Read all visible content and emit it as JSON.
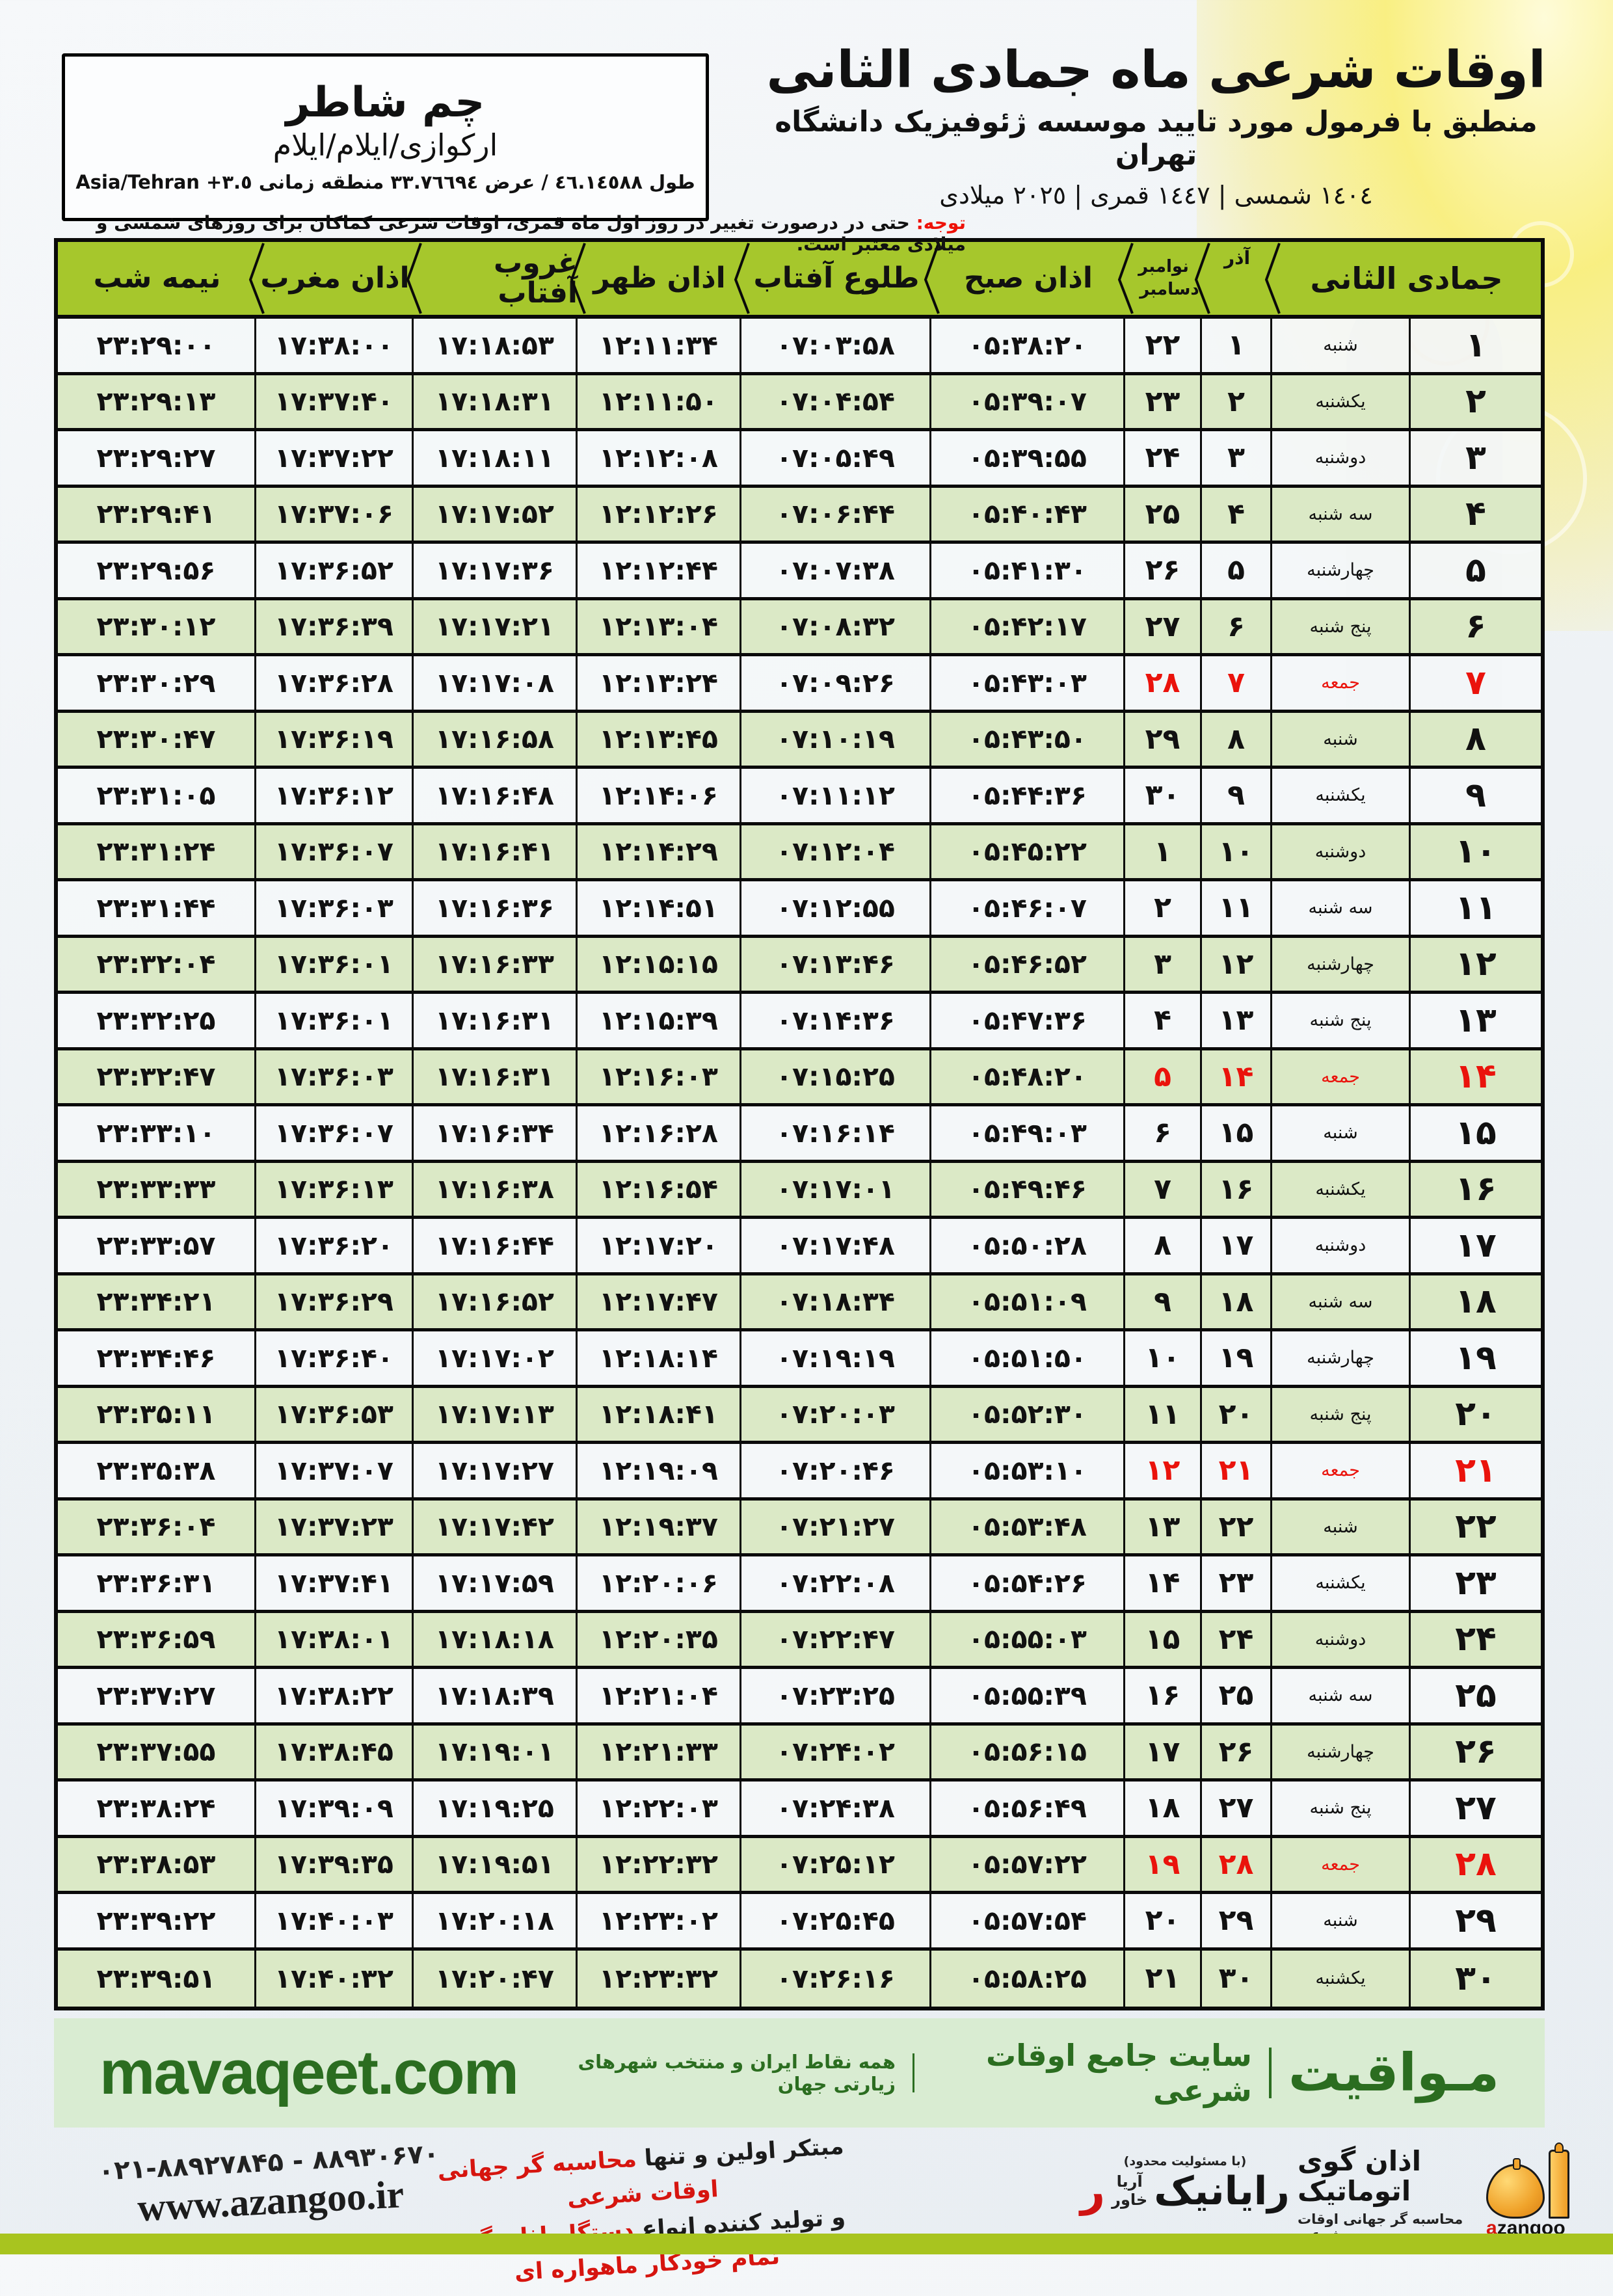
{
  "colors": {
    "header_green": "#a6c72c",
    "row_green": "#dbe9c6",
    "row_white": "#f4f7f8",
    "friday_red": "#ea130c",
    "band_bg": "#d9ecd2",
    "band_fg": "#2b6d20",
    "bottom_bar": "#a8c41f"
  },
  "location_box": {
    "city": "چم شاطر",
    "region": "ارکوازی/ایلام/ایلام",
    "coords_line": "طول ٤٦.١٤٥٨٨ / عرض ٣٣.٧٦٦٩٤ منطقه زمانی ٣.٥+ Asia/Tehran"
  },
  "header": {
    "title": "اوقات شرعی ماه جمادی الثانی",
    "subtitle": "منطبق با فرمول مورد تایید موسسه ژئوفیزیک دانشگاه تهران",
    "years_line": "١٤٠٤ شمسی | ١٤٤٧ قمری | ٢٠٢٥ میلادی"
  },
  "notice": {
    "label": "توجه:",
    "text": " حتی در درصورت تغییر در روز اول ماه قمری، اوقات شرعی کماکان برای روزهای شمسی و میلادی معتبر است."
  },
  "table": {
    "headers": {
      "nim": "نیمه شب",
      "maghreb": "اذان مغرب",
      "ghorub": "غروب آفتاب",
      "zohr": "اذان ظهر",
      "tolu": "طلوع آفتاب",
      "sobh": "اذان صبح",
      "nov": "نوامبر",
      "dec": "دسامبر",
      "azar": "آذر",
      "month": "جمادی الثانی"
    },
    "rows": [
      {
        "day": "۱",
        "weekday": "شنبه",
        "azar": "۱",
        "greg": "۲۲",
        "sobh": "۰۵:۳۸:۲۰",
        "tolu": "۰۷:۰۳:۵۸",
        "zohr": "۱۲:۱۱:۳۴",
        "ghorub": "۱۷:۱۸:۵۳",
        "maghreb": "۱۷:۳۸:۰۰",
        "nim": "۲۳:۲۹:۰۰",
        "friday": false
      },
      {
        "day": "۲",
        "weekday": "یکشنبه",
        "azar": "۲",
        "greg": "۲۳",
        "sobh": "۰۵:۳۹:۰۷",
        "tolu": "۰۷:۰۴:۵۴",
        "zohr": "۱۲:۱۱:۵۰",
        "ghorub": "۱۷:۱۸:۳۱",
        "maghreb": "۱۷:۳۷:۴۰",
        "nim": "۲۳:۲۹:۱۳",
        "friday": false
      },
      {
        "day": "۳",
        "weekday": "دوشنبه",
        "azar": "۳",
        "greg": "۲۴",
        "sobh": "۰۵:۳۹:۵۵",
        "tolu": "۰۷:۰۵:۴۹",
        "zohr": "۱۲:۱۲:۰۸",
        "ghorub": "۱۷:۱۸:۱۱",
        "maghreb": "۱۷:۳۷:۲۲",
        "nim": "۲۳:۲۹:۲۷",
        "friday": false
      },
      {
        "day": "۴",
        "weekday": "سه شنبه",
        "azar": "۴",
        "greg": "۲۵",
        "sobh": "۰۵:۴۰:۴۳",
        "tolu": "۰۷:۰۶:۴۴",
        "zohr": "۱۲:۱۲:۲۶",
        "ghorub": "۱۷:۱۷:۵۲",
        "maghreb": "۱۷:۳۷:۰۶",
        "nim": "۲۳:۲۹:۴۱",
        "friday": false
      },
      {
        "day": "۵",
        "weekday": "چهارشنبه",
        "azar": "۵",
        "greg": "۲۶",
        "sobh": "۰۵:۴۱:۳۰",
        "tolu": "۰۷:۰۷:۳۸",
        "zohr": "۱۲:۱۲:۴۴",
        "ghorub": "۱۷:۱۷:۳۶",
        "maghreb": "۱۷:۳۶:۵۲",
        "nim": "۲۳:۲۹:۵۶",
        "friday": false
      },
      {
        "day": "۶",
        "weekday": "پنج شنبه",
        "azar": "۶",
        "greg": "۲۷",
        "sobh": "۰۵:۴۲:۱۷",
        "tolu": "۰۷:۰۸:۳۲",
        "zohr": "۱۲:۱۳:۰۴",
        "ghorub": "۱۷:۱۷:۲۱",
        "maghreb": "۱۷:۳۶:۳۹",
        "nim": "۲۳:۳۰:۱۲",
        "friday": false
      },
      {
        "day": "۷",
        "weekday": "جمعه",
        "azar": "۷",
        "greg": "۲۸",
        "sobh": "۰۵:۴۳:۰۳",
        "tolu": "۰۷:۰۹:۲۶",
        "zohr": "۱۲:۱۳:۲۴",
        "ghorub": "۱۷:۱۷:۰۸",
        "maghreb": "۱۷:۳۶:۲۸",
        "nim": "۲۳:۳۰:۲۹",
        "friday": true
      },
      {
        "day": "۸",
        "weekday": "شنبه",
        "azar": "۸",
        "greg": "۲۹",
        "sobh": "۰۵:۴۳:۵۰",
        "tolu": "۰۷:۱۰:۱۹",
        "zohr": "۱۲:۱۳:۴۵",
        "ghorub": "۱۷:۱۶:۵۸",
        "maghreb": "۱۷:۳۶:۱۹",
        "nim": "۲۳:۳۰:۴۷",
        "friday": false
      },
      {
        "day": "۹",
        "weekday": "یکشنبه",
        "azar": "۹",
        "greg": "۳۰",
        "sobh": "۰۵:۴۴:۳۶",
        "tolu": "۰۷:۱۱:۱۲",
        "zohr": "۱۲:۱۴:۰۶",
        "ghorub": "۱۷:۱۶:۴۸",
        "maghreb": "۱۷:۳۶:۱۲",
        "nim": "۲۳:۳۱:۰۵",
        "friday": false
      },
      {
        "day": "۱۰",
        "weekday": "دوشنبه",
        "azar": "۱۰",
        "greg": "۱",
        "sobh": "۰۵:۴۵:۲۲",
        "tolu": "۰۷:۱۲:۰۴",
        "zohr": "۱۲:۱۴:۲۹",
        "ghorub": "۱۷:۱۶:۴۱",
        "maghreb": "۱۷:۳۶:۰۷",
        "nim": "۲۳:۳۱:۲۴",
        "friday": false
      },
      {
        "day": "۱۱",
        "weekday": "سه شنبه",
        "azar": "۱۱",
        "greg": "۲",
        "sobh": "۰۵:۴۶:۰۷",
        "tolu": "۰۷:۱۲:۵۵",
        "zohr": "۱۲:۱۴:۵۱",
        "ghorub": "۱۷:۱۶:۳۶",
        "maghreb": "۱۷:۳۶:۰۳",
        "nim": "۲۳:۳۱:۴۴",
        "friday": false
      },
      {
        "day": "۱۲",
        "weekday": "چهارشنبه",
        "azar": "۱۲",
        "greg": "۳",
        "sobh": "۰۵:۴۶:۵۲",
        "tolu": "۰۷:۱۳:۴۶",
        "zohr": "۱۲:۱۵:۱۵",
        "ghorub": "۱۷:۱۶:۳۳",
        "maghreb": "۱۷:۳۶:۰۱",
        "nim": "۲۳:۳۲:۰۴",
        "friday": false
      },
      {
        "day": "۱۳",
        "weekday": "پنج شنبه",
        "azar": "۱۳",
        "greg": "۴",
        "sobh": "۰۵:۴۷:۳۶",
        "tolu": "۰۷:۱۴:۳۶",
        "zohr": "۱۲:۱۵:۳۹",
        "ghorub": "۱۷:۱۶:۳۱",
        "maghreb": "۱۷:۳۶:۰۱",
        "nim": "۲۳:۳۲:۲۵",
        "friday": false
      },
      {
        "day": "۱۴",
        "weekday": "جمعه",
        "azar": "۱۴",
        "greg": "۵",
        "sobh": "۰۵:۴۸:۲۰",
        "tolu": "۰۷:۱۵:۲۵",
        "zohr": "۱۲:۱۶:۰۳",
        "ghorub": "۱۷:۱۶:۳۱",
        "maghreb": "۱۷:۳۶:۰۳",
        "nim": "۲۳:۳۲:۴۷",
        "friday": true
      },
      {
        "day": "۱۵",
        "weekday": "شنبه",
        "azar": "۱۵",
        "greg": "۶",
        "sobh": "۰۵:۴۹:۰۳",
        "tolu": "۰۷:۱۶:۱۴",
        "zohr": "۱۲:۱۶:۲۸",
        "ghorub": "۱۷:۱۶:۳۴",
        "maghreb": "۱۷:۳۶:۰۷",
        "nim": "۲۳:۳۳:۱۰",
        "friday": false
      },
      {
        "day": "۱۶",
        "weekday": "یکشنبه",
        "azar": "۱۶",
        "greg": "۷",
        "sobh": "۰۵:۴۹:۴۶",
        "tolu": "۰۷:۱۷:۰۱",
        "zohr": "۱۲:۱۶:۵۴",
        "ghorub": "۱۷:۱۶:۳۸",
        "maghreb": "۱۷:۳۶:۱۳",
        "nim": "۲۳:۳۳:۳۳",
        "friday": false
      },
      {
        "day": "۱۷",
        "weekday": "دوشنبه",
        "azar": "۱۷",
        "greg": "۸",
        "sobh": "۰۵:۵۰:۲۸",
        "tolu": "۰۷:۱۷:۴۸",
        "zohr": "۱۲:۱۷:۲۰",
        "ghorub": "۱۷:۱۶:۴۴",
        "maghreb": "۱۷:۳۶:۲۰",
        "nim": "۲۳:۳۳:۵۷",
        "friday": false
      },
      {
        "day": "۱۸",
        "weekday": "سه شنبه",
        "azar": "۱۸",
        "greg": "۹",
        "sobh": "۰۵:۵۱:۰۹",
        "tolu": "۰۷:۱۸:۳۴",
        "zohr": "۱۲:۱۷:۴۷",
        "ghorub": "۱۷:۱۶:۵۲",
        "maghreb": "۱۷:۳۶:۲۹",
        "nim": "۲۳:۳۴:۲۱",
        "friday": false
      },
      {
        "day": "۱۹",
        "weekday": "چهارشنبه",
        "azar": "۱۹",
        "greg": "۱۰",
        "sobh": "۰۵:۵۱:۵۰",
        "tolu": "۰۷:۱۹:۱۹",
        "zohr": "۱۲:۱۸:۱۴",
        "ghorub": "۱۷:۱۷:۰۲",
        "maghreb": "۱۷:۳۶:۴۰",
        "nim": "۲۳:۳۴:۴۶",
        "friday": false
      },
      {
        "day": "۲۰",
        "weekday": "پنج شنبه",
        "azar": "۲۰",
        "greg": "۱۱",
        "sobh": "۰۵:۵۲:۳۰",
        "tolu": "۰۷:۲۰:۰۳",
        "zohr": "۱۲:۱۸:۴۱",
        "ghorub": "۱۷:۱۷:۱۳",
        "maghreb": "۱۷:۳۶:۵۳",
        "nim": "۲۳:۳۵:۱۱",
        "friday": false
      },
      {
        "day": "۲۱",
        "weekday": "جمعه",
        "azar": "۲۱",
        "greg": "۱۲",
        "sobh": "۰۵:۵۳:۱۰",
        "tolu": "۰۷:۲۰:۴۶",
        "zohr": "۱۲:۱۹:۰۹",
        "ghorub": "۱۷:۱۷:۲۷",
        "maghreb": "۱۷:۳۷:۰۷",
        "nim": "۲۳:۳۵:۳۸",
        "friday": true
      },
      {
        "day": "۲۲",
        "weekday": "شنبه",
        "azar": "۲۲",
        "greg": "۱۳",
        "sobh": "۰۵:۵۳:۴۸",
        "tolu": "۰۷:۲۱:۲۷",
        "zohr": "۱۲:۱۹:۳۷",
        "ghorub": "۱۷:۱۷:۴۲",
        "maghreb": "۱۷:۳۷:۲۳",
        "nim": "۲۳:۳۶:۰۴",
        "friday": false
      },
      {
        "day": "۲۳",
        "weekday": "یکشنبه",
        "azar": "۲۳",
        "greg": "۱۴",
        "sobh": "۰۵:۵۴:۲۶",
        "tolu": "۰۷:۲۲:۰۸",
        "zohr": "۱۲:۲۰:۰۶",
        "ghorub": "۱۷:۱۷:۵۹",
        "maghreb": "۱۷:۳۷:۴۱",
        "nim": "۲۳:۳۶:۳۱",
        "friday": false
      },
      {
        "day": "۲۴",
        "weekday": "دوشنبه",
        "azar": "۲۴",
        "greg": "۱۵",
        "sobh": "۰۵:۵۵:۰۳",
        "tolu": "۰۷:۲۲:۴۷",
        "zohr": "۱۲:۲۰:۳۵",
        "ghorub": "۱۷:۱۸:۱۸",
        "maghreb": "۱۷:۳۸:۰۱",
        "nim": "۲۳:۳۶:۵۹",
        "friday": false
      },
      {
        "day": "۲۵",
        "weekday": "سه شنبه",
        "azar": "۲۵",
        "greg": "۱۶",
        "sobh": "۰۵:۵۵:۳۹",
        "tolu": "۰۷:۲۳:۲۵",
        "zohr": "۱۲:۲۱:۰۴",
        "ghorub": "۱۷:۱۸:۳۹",
        "maghreb": "۱۷:۳۸:۲۲",
        "nim": "۲۳:۳۷:۲۷",
        "friday": false
      },
      {
        "day": "۲۶",
        "weekday": "چهارشنبه",
        "azar": "۲۶",
        "greg": "۱۷",
        "sobh": "۰۵:۵۶:۱۵",
        "tolu": "۰۷:۲۴:۰۲",
        "zohr": "۱۲:۲۱:۳۳",
        "ghorub": "۱۷:۱۹:۰۱",
        "maghreb": "۱۷:۳۸:۴۵",
        "nim": "۲۳:۳۷:۵۵",
        "friday": false
      },
      {
        "day": "۲۷",
        "weekday": "پنج شنبه",
        "azar": "۲۷",
        "greg": "۱۸",
        "sobh": "۰۵:۵۶:۴۹",
        "tolu": "۰۷:۲۴:۳۸",
        "zohr": "۱۲:۲۲:۰۳",
        "ghorub": "۱۷:۱۹:۲۵",
        "maghreb": "۱۷:۳۹:۰۹",
        "nim": "۲۳:۳۸:۲۴",
        "friday": false
      },
      {
        "day": "۲۸",
        "weekday": "جمعه",
        "azar": "۲۸",
        "greg": "۱۹",
        "sobh": "۰۵:۵۷:۲۲",
        "tolu": "۰۷:۲۵:۱۲",
        "zohr": "۱۲:۲۲:۳۲",
        "ghorub": "۱۷:۱۹:۵۱",
        "maghreb": "۱۷:۳۹:۳۵",
        "nim": "۲۳:۳۸:۵۳",
        "friday": true
      },
      {
        "day": "۲۹",
        "weekday": "شنبه",
        "azar": "۲۹",
        "greg": "۲۰",
        "sobh": "۰۵:۵۷:۵۴",
        "tolu": "۰۷:۲۵:۴۵",
        "zohr": "۱۲:۲۳:۰۲",
        "ghorub": "۱۷:۲۰:۱۸",
        "maghreb": "۱۷:۴۰:۰۳",
        "nim": "۲۳:۳۹:۲۲",
        "friday": false
      },
      {
        "day": "۳۰",
        "weekday": "یکشنبه",
        "azar": "۳۰",
        "greg": "۲۱",
        "sobh": "۰۵:۵۸:۲۵",
        "tolu": "۰۷:۲۶:۱۶",
        "zohr": "۱۲:۲۳:۳۲",
        "ghorub": "۱۷:۲۰:۴۷",
        "maghreb": "۱۷:۴۰:۳۲",
        "nim": "۲۳:۳۹:۵۱",
        "friday": false
      }
    ]
  },
  "band": {
    "domain": "mavaqeet.com",
    "brand": "مـواقیت",
    "site_label": "سایت جامع اوقات شرعی",
    "tagline": "همه نقاط ایران و منتخب شهرهای زیارتی جهان"
  },
  "bottom": {
    "phone": "۰۲۱-۸۸۹۲۷۸۴۵ - ۸۸۹۳۰۶۷۰",
    "website": "www.azangoo.ir",
    "ad_black1": "مبتکر اولین و تنها ",
    "ad_red1": "محاسبه گر جهانی اوقات شرعی",
    "ad_black2": "و تولید کننده انواع ",
    "ad_red2": "دستگاه اذان گوی تمام خودکار ماهواره ای",
    "rayanik": {
      "ltd": "(با مسئولیت محدود)",
      "name": "رایانیک",
      "sub1": "آریا",
      "sub2": "خاور",
      "red_letter": "ر"
    },
    "azangoo": {
      "title": "اذان گوی اتوماتیک",
      "subtitle": "محاسبه گر جهانی اوقات شرعی",
      "latin_a": "a",
      "latin_rest": "zangoo"
    }
  }
}
